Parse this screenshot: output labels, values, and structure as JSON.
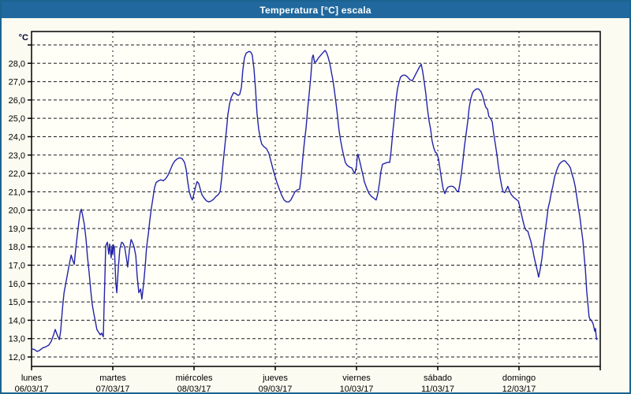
{
  "window": {
    "title": "Temperatura [°C] escala"
  },
  "colors": {
    "titlebar_bg": "#20689d",
    "window_border": "#1b6390",
    "background": "#fbfbf1",
    "plot_background": "#fffff8",
    "line_color": "#2323a8",
    "grid_color": "#1a1a1a",
    "frame_color": "#000000",
    "text_color": "#000000"
  },
  "chart_data": {
    "type": "line",
    "title": "Temperatura [°C] escala",
    "y_unit_label": "°C",
    "ylabel": "",
    "xlabel": "",
    "ylim": [
      11.5,
      29.75
    ],
    "xlim_hours": [
      0,
      168
    ],
    "grid": "dashed horizontal and vertical day lines",
    "legend_position": "none",
    "y_tick_values": [
      12,
      13,
      14,
      15,
      16,
      17,
      18,
      19,
      20,
      21,
      22,
      23,
      24,
      25,
      26,
      27,
      28
    ],
    "y_tick_labels": [
      "12,0",
      "13,0",
      "14,0",
      "15,0",
      "16,0",
      "17,0",
      "18,0",
      "19,0",
      "20,0",
      "21,0",
      "22,0",
      "23,0",
      "24,0",
      "25,0",
      "26,0",
      "27,0",
      "28,0"
    ],
    "x_days": [
      {
        "name": "lunes",
        "date": "06/03/17",
        "start_hour": 0
      },
      {
        "name": "martes",
        "date": "07/03/17",
        "start_hour": 24
      },
      {
        "name": "miércoles",
        "date": "08/03/17",
        "start_hour": 48
      },
      {
        "name": "jueves",
        "date": "09/03/17",
        "start_hour": 72
      },
      {
        "name": "viernes",
        "date": "10/03/17",
        "start_hour": 96
      },
      {
        "name": "sábado",
        "date": "11/03/17",
        "start_hour": 120
      },
      {
        "name": "domingo",
        "date": "12/03/17",
        "start_hour": 144
      }
    ],
    "series": [
      {
        "name": "Temperatura",
        "x_hours": [
          0,
          0.9,
          1.6,
          2.3,
          3.3,
          4.2,
          5.1,
          5.8,
          6.5,
          7.0,
          7.7,
          8.2,
          8.6,
          9.1,
          9.6,
          10.3,
          11.0,
          11.7,
          12.1,
          12.6,
          13.0,
          13.5,
          14.0,
          14.4,
          14.7,
          15.1,
          15.6,
          16.1,
          16.5,
          17.0,
          17.5,
          17.9,
          18.4,
          18.9,
          19.3,
          19.8,
          20.3,
          20.7,
          21.2,
          21.4,
          21.7,
          21.9,
          22.4,
          22.8,
          23.1,
          23.5,
          23.8,
          24.0,
          24.2,
          24.5,
          24.7,
          24.9,
          25.2,
          25.6,
          26.1,
          26.6,
          27.0,
          27.5,
          28.0,
          28.4,
          28.9,
          29.4,
          29.8,
          30.3,
          30.8,
          31.2,
          31.7,
          32.2,
          32.6,
          33.1,
          33.6,
          34.0,
          34.5,
          34.9,
          35.4,
          35.9,
          36.3,
          36.8,
          37.5,
          38.2,
          38.9,
          39.6,
          40.3,
          41.0,
          41.7,
          42.4,
          43.1,
          43.8,
          44.5,
          45.2,
          45.7,
          46.1,
          46.6,
          47.1,
          47.5,
          48.0,
          48.5,
          48.9,
          49.4,
          49.9,
          50.3,
          51.0,
          51.7,
          52.4,
          53.1,
          53.8,
          54.5,
          55.2,
          55.7,
          56.2,
          56.6,
          57.1,
          57.6,
          58.0,
          58.5,
          59.0,
          59.7,
          60.3,
          61.0,
          61.5,
          62.0,
          62.4,
          62.9,
          63.4,
          63.8,
          64.3,
          64.8,
          65.2,
          65.7,
          66.2,
          66.6,
          67.1,
          67.6,
          68.0,
          68.7,
          69.4,
          70.1,
          70.8,
          71.5,
          72.0,
          72.5,
          73.2,
          73.9,
          74.6,
          75.3,
          76.0,
          76.6,
          77.3,
          77.8,
          78.5,
          79.2,
          79.7,
          80.1,
          80.6,
          81.1,
          81.5,
          82.0,
          82.5,
          82.9,
          83.2,
          83.6,
          84.1,
          84.8,
          85.5,
          86.2,
          86.7,
          87.1,
          87.6,
          88.1,
          88.5,
          89.0,
          89.4,
          89.9,
          90.4,
          90.8,
          91.3,
          91.8,
          92.3,
          92.7,
          93.2,
          93.9,
          94.6,
          95.0,
          95.5,
          96.0,
          96.2,
          96.4,
          96.9,
          97.4,
          97.9,
          98.3,
          99.0,
          99.7,
          100.4,
          101.1,
          101.8,
          102.3,
          102.8,
          103.2,
          103.7,
          104.4,
          105.1,
          105.8,
          106.2,
          106.7,
          107.2,
          107.6,
          108.1,
          108.6,
          109.0,
          109.7,
          110.4,
          111.1,
          111.8,
          112.5,
          113.2,
          113.9,
          114.6,
          115.1,
          115.5,
          116.0,
          116.5,
          116.9,
          117.4,
          117.9,
          118.3,
          118.8,
          119.3,
          119.7,
          120.2,
          120.7,
          121.2,
          121.6,
          122.1,
          122.5,
          123.0,
          123.7,
          124.4,
          125.1,
          125.6,
          126.1,
          126.5,
          127.0,
          127.5,
          127.9,
          128.4,
          128.9,
          129.3,
          129.8,
          130.3,
          130.7,
          131.4,
          132.1,
          132.8,
          133.3,
          133.7,
          134.2,
          134.7,
          135.1,
          135.6,
          136.1,
          136.5,
          137.0,
          137.5,
          137.9,
          138.4,
          138.9,
          139.3,
          139.8,
          140.3,
          140.7,
          141.2,
          141.7,
          142.4,
          143.1,
          143.8,
          144.2,
          144.7,
          145.2,
          145.6,
          146.1,
          146.6,
          147.0,
          147.5,
          148.0,
          148.4,
          148.9,
          149.4,
          149.8,
          150.3,
          150.8,
          151.2,
          151.7,
          152.2,
          152.6,
          153.1,
          153.6,
          154.0,
          154.5,
          155.0,
          155.4,
          155.9,
          156.4,
          156.8,
          157.3,
          157.8,
          158.2,
          158.7,
          159.2,
          159.6,
          160.1,
          160.6,
          161.0,
          161.5,
          162.0,
          162.4,
          162.9,
          163.3,
          163.6,
          163.8,
          164.0,
          164.3,
          164.5,
          164.7,
          165.0,
          165.4,
          165.9,
          166.4,
          166.6,
          166.8,
          167.0
        ],
        "values": [
          12.45,
          12.4,
          12.3,
          12.35,
          12.5,
          12.55,
          12.65,
          12.85,
          13.2,
          13.5,
          13.15,
          12.95,
          13.4,
          14.6,
          15.5,
          16.2,
          16.9,
          17.55,
          17.3,
          17.05,
          17.8,
          18.6,
          19.4,
          19.9,
          20.05,
          19.7,
          19.2,
          18.4,
          17.5,
          16.6,
          15.6,
          14.9,
          14.35,
          13.9,
          13.5,
          13.35,
          13.2,
          13.3,
          13.1,
          14.5,
          16.5,
          18.05,
          18.25,
          17.6,
          18.15,
          17.4,
          18.05,
          17.6,
          18.1,
          17.9,
          16.9,
          16.0,
          15.5,
          16.8,
          17.9,
          18.25,
          18.2,
          18.0,
          17.4,
          16.9,
          17.8,
          18.4,
          18.25,
          18.0,
          17.5,
          16.4,
          15.5,
          15.7,
          15.15,
          16.0,
          17.0,
          18.0,
          18.7,
          19.4,
          20.1,
          20.7,
          21.2,
          21.5,
          21.6,
          21.65,
          21.6,
          21.7,
          21.9,
          22.2,
          22.5,
          22.7,
          22.8,
          22.85,
          22.8,
          22.6,
          22.2,
          21.6,
          21.0,
          20.7,
          20.55,
          20.9,
          21.3,
          21.55,
          21.45,
          21.1,
          20.85,
          20.65,
          20.5,
          20.45,
          20.5,
          20.6,
          20.75,
          20.85,
          21.0,
          21.8,
          22.6,
          23.5,
          24.4,
          25.2,
          25.8,
          26.15,
          26.4,
          26.35,
          26.25,
          26.3,
          26.7,
          27.6,
          28.3,
          28.55,
          28.6,
          28.65,
          28.6,
          28.45,
          27.7,
          26.5,
          25.3,
          24.4,
          23.9,
          23.6,
          23.45,
          23.35,
          23.1,
          22.6,
          22.1,
          21.8,
          21.5,
          21.15,
          20.8,
          20.55,
          20.45,
          20.45,
          20.55,
          20.8,
          21.0,
          21.1,
          21.15,
          21.9,
          22.8,
          23.7,
          24.5,
          25.4,
          26.3,
          27.3,
          28.3,
          28.45,
          28.05,
          28.1,
          28.3,
          28.45,
          28.6,
          28.7,
          28.6,
          28.35,
          28.0,
          27.6,
          27.1,
          26.6,
          25.9,
          25.1,
          24.4,
          23.8,
          23.3,
          22.9,
          22.6,
          22.45,
          22.35,
          22.3,
          22.15,
          22.0,
          22.4,
          22.9,
          23.05,
          22.7,
          22.3,
          21.9,
          21.55,
          21.2,
          20.9,
          20.75,
          20.65,
          20.55,
          20.9,
          21.5,
          22.1,
          22.5,
          22.55,
          22.6,
          22.6,
          23.2,
          24.2,
          25.1,
          25.9,
          26.6,
          27.0,
          27.25,
          27.35,
          27.35,
          27.25,
          27.1,
          27.05,
          27.3,
          27.55,
          27.8,
          27.95,
          27.6,
          27.0,
          26.3,
          25.6,
          24.9,
          24.4,
          23.8,
          23.4,
          23.15,
          23.1,
          22.8,
          22.2,
          21.6,
          21.15,
          20.9,
          21.1,
          21.25,
          21.3,
          21.3,
          21.2,
          21.05,
          21.0,
          21.4,
          22.0,
          22.8,
          23.5,
          24.2,
          24.9,
          25.6,
          26.1,
          26.4,
          26.5,
          26.6,
          26.6,
          26.45,
          26.2,
          25.9,
          25.6,
          25.5,
          25.1,
          25.0,
          24.8,
          24.2,
          23.6,
          23.0,
          22.4,
          21.8,
          21.3,
          21.0,
          20.95,
          21.15,
          21.3,
          21.05,
          20.85,
          20.7,
          20.6,
          20.5,
          20.2,
          19.8,
          19.4,
          19.1,
          18.9,
          18.85,
          18.6,
          18.3,
          17.9,
          17.5,
          17.1,
          16.7,
          16.35,
          16.8,
          17.4,
          18.1,
          18.8,
          19.5,
          20.1,
          20.5,
          21.0,
          21.3,
          21.8,
          22.1,
          22.3,
          22.5,
          22.6,
          22.65,
          22.7,
          22.65,
          22.55,
          22.45,
          22.3,
          22.0,
          21.7,
          21.3,
          20.8,
          20.2,
          19.6,
          19.0,
          18.3,
          17.4,
          16.8,
          16.2,
          15.6,
          15.0,
          14.6,
          14.2,
          14.05,
          14.0,
          13.8,
          13.4,
          13.55,
          13.1,
          12.95
        ]
      }
    ]
  }
}
